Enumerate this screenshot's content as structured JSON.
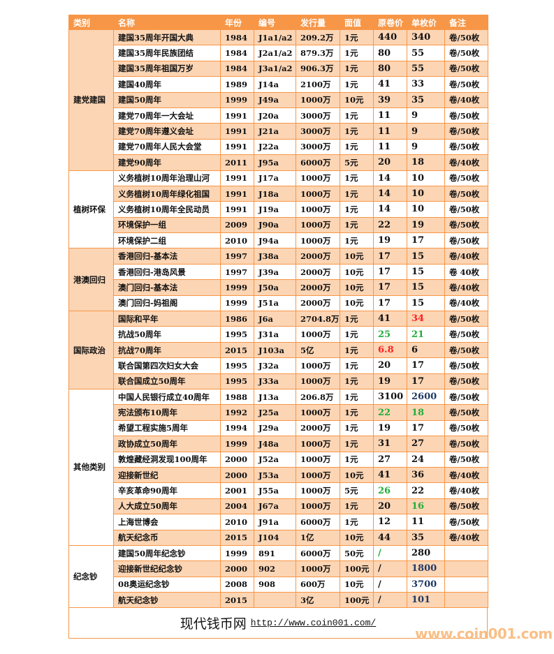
{
  "headers": [
    "类别",
    "名称",
    "年份",
    "编号",
    "发行量",
    "面值",
    "原卷价",
    "单枚价",
    "备注"
  ],
  "groups": [
    {
      "category": "建党建国",
      "shaded": true,
      "rows": [
        {
          "name": "建国35周年开国大典",
          "year": "1984",
          "code": "J1a1/a2",
          "issue": "209.2万",
          "face": "1元",
          "roll": "440",
          "unit": "340",
          "note": "卷/50枚",
          "shaded": true
        },
        {
          "name": "建国35周年民族团结",
          "year": "1984",
          "code": "J2a1/a2",
          "issue": "879.3万",
          "face": "1元",
          "roll": "80",
          "unit": "55",
          "note": "卷/50枚",
          "shaded": false
        },
        {
          "name": "建国35周年祖国万岁",
          "year": "1984",
          "code": "J3a1/a2",
          "issue": "906.3万",
          "face": "1元",
          "roll": "80",
          "unit": "55",
          "note": "卷/50枚",
          "shaded": true
        },
        {
          "name": "建国40周年",
          "year": "1989",
          "code": "J14a",
          "issue": "2100万",
          "face": "1元",
          "roll": "41",
          "unit": "33",
          "note": "卷/50枚",
          "shaded": false
        },
        {
          "name": "建国50周年",
          "year": "1999",
          "code": "J49a",
          "issue": "1000万",
          "face": "10元",
          "roll": "39",
          "unit": "35",
          "note": "卷/40枚",
          "shaded": true
        },
        {
          "name": "建党70周年一大会址",
          "year": "1991",
          "code": "J20a",
          "issue": "3000万",
          "face": "1元",
          "roll": "11",
          "unit": "9",
          "note": "卷/50枚",
          "shaded": false
        },
        {
          "name": "建党70周年遵义会址",
          "year": "1991",
          "code": "J21a",
          "issue": "3000万",
          "face": "1元",
          "roll": "11",
          "unit": "9",
          "note": "卷/50枚",
          "shaded": true
        },
        {
          "name": "建党70周年人民大会堂",
          "year": "1991",
          "code": "J22a",
          "issue": "3000万",
          "face": "1元",
          "roll": "11",
          "unit": "9",
          "note": "卷/50枚",
          "shaded": false
        },
        {
          "name": "建党90周年",
          "year": "2011",
          "code": "J95a",
          "issue": "6000万",
          "face": "5元",
          "roll": "20",
          "unit": "18",
          "note": "卷/40枚",
          "shaded": true
        }
      ]
    },
    {
      "category": "植树环保",
      "shaded": false,
      "rows": [
        {
          "name": "义务植树10周年治理山河",
          "year": "1991",
          "code": "J17a",
          "issue": "1000万",
          "face": "1元",
          "roll": "14",
          "unit": "10",
          "note": "卷/50枚",
          "shaded": false
        },
        {
          "name": "义务植树10周年绿化祖国",
          "year": "1991",
          "code": "J18a",
          "issue": "1000万",
          "face": "1元",
          "roll": "14",
          "unit": "10",
          "note": "卷/50枚",
          "shaded": true
        },
        {
          "name": "义务植树10周年全民动员",
          "year": "1991",
          "code": "J19a",
          "issue": "1000万",
          "face": "1元",
          "roll": "14",
          "unit": "10",
          "note": "卷/50枚",
          "shaded": false
        },
        {
          "name": "环境保护一组",
          "year": "2009",
          "code": "J90a",
          "issue": "1000万",
          "face": "1元",
          "roll": "22",
          "unit": "19",
          "note": "卷/50枚",
          "shaded": true
        },
        {
          "name": "环境保护二组",
          "year": "2010",
          "code": "J94a",
          "issue": "1000万",
          "face": "1元",
          "roll": "19",
          "unit": "17",
          "note": "卷/50枚",
          "shaded": false
        }
      ]
    },
    {
      "category": "港澳回归",
      "shaded": true,
      "rows": [
        {
          "name": "香港回归-基本法",
          "year": "1997",
          "code": "J38a",
          "issue": "2000万",
          "face": "10元",
          "roll": "17",
          "unit": "15",
          "note": "卷/40枚",
          "shaded": true
        },
        {
          "name": "香港回归-港岛风景",
          "year": "1997",
          "code": "J39a",
          "issue": "2000万",
          "face": "10元",
          "roll": "17",
          "unit": "15",
          "note": "卷 40枚",
          "shaded": false
        },
        {
          "name": "澳门回归-基本法",
          "year": "1999",
          "code": "J50a",
          "issue": "2000万",
          "face": "10元",
          "roll": "17",
          "unit": "15",
          "note": "卷/40枚",
          "shaded": true
        },
        {
          "name": "澳门回归-妈祖阁",
          "year": "1999",
          "code": "J51a",
          "issue": "2000万",
          "face": "10元",
          "roll": "17",
          "unit": "15",
          "note": "卷/40枚",
          "shaded": false
        }
      ]
    },
    {
      "category": "国际政治",
      "shaded": true,
      "rows": [
        {
          "name": "国际和平年",
          "year": "1986",
          "code": "J6a",
          "issue": "2704.8万",
          "face": "1元",
          "roll": "41",
          "unit": "34",
          "note": "卷/50枚",
          "shaded": true,
          "unit_color": "red"
        },
        {
          "name": "抗战50周年",
          "year": "1995",
          "code": "J31a",
          "issue": "1000万",
          "face": "1元",
          "roll": "25",
          "unit": "21",
          "note": "卷/50枚",
          "shaded": false,
          "roll_color": "green",
          "unit_color": "green"
        },
        {
          "name": "抗战70周年",
          "year": "2015",
          "code": "J103a",
          "issue": "5亿",
          "face": "1元",
          "roll": "6.8",
          "unit": "6",
          "note": "卷/50枚",
          "shaded": true,
          "roll_color": "red"
        },
        {
          "name": "联合国第四次妇女大会",
          "year": "1995",
          "code": "J32a",
          "issue": "1000万",
          "face": "1元",
          "roll": "20",
          "unit": "17",
          "note": "卷/50枚",
          "shaded": false
        },
        {
          "name": "联合国成立50周年",
          "year": "1995",
          "code": "J33a",
          "issue": "1000万",
          "face": "1元",
          "roll": "19",
          "unit": "17",
          "note": "卷/50枚",
          "shaded": true
        }
      ]
    },
    {
      "category": "其他类别",
      "shaded": false,
      "rows": [
        {
          "name": "中国人民银行成立40周年",
          "year": "1988",
          "code": "J13a",
          "issue": "206.8万",
          "face": "1元",
          "roll": "3100",
          "unit": "2600",
          "note": "卷/50枚",
          "shaded": false,
          "unit_color": "navy"
        },
        {
          "name": "宪法颁布10周年",
          "year": "1992",
          "code": "J25a",
          "issue": "1000万",
          "face": "1元",
          "roll": "22",
          "unit": "18",
          "note": "卷/50枚",
          "shaded": true,
          "roll_color": "green",
          "unit_color": "green"
        },
        {
          "name": "希望工程实施5周年",
          "year": "1994",
          "code": "J29a",
          "issue": "2000万",
          "face": "1元",
          "roll": "19",
          "unit": "17",
          "note": "卷/50枚",
          "shaded": false
        },
        {
          "name": "政协成立50周年",
          "year": "1999",
          "code": "J48a",
          "issue": "1000万",
          "face": "1元",
          "roll": "31",
          "unit": "27",
          "note": "卷/50枚",
          "shaded": true
        },
        {
          "name": "敦煌藏经洞发现100周年",
          "year": "2000",
          "code": "J52a",
          "issue": "1000万",
          "face": "1元",
          "roll": "27",
          "unit": "24",
          "note": "卷/50枚",
          "shaded": false
        },
        {
          "name": "迎接新世纪",
          "year": "2000",
          "code": "J53a",
          "issue": "1000万",
          "face": "10元",
          "roll": "41",
          "unit": "36",
          "note": "卷/40枚",
          "shaded": true
        },
        {
          "name": "辛亥革命90周年",
          "year": "2001",
          "code": "J55a",
          "issue": "1000万",
          "face": "5元",
          "roll": "26",
          "unit": "22",
          "note": "卷/40枚",
          "shaded": false,
          "roll_color": "green"
        },
        {
          "name": "人大成立50周年",
          "year": "2004",
          "code": "J67a",
          "issue": "1000万",
          "face": "1元",
          "roll": "20",
          "unit": "16",
          "note": "卷/50枚",
          "shaded": true,
          "unit_color": "green"
        },
        {
          "name": "上海世博会",
          "year": "2010",
          "code": "J91a",
          "issue": "6000万",
          "face": "1元",
          "roll": "12",
          "unit": "11",
          "note": "卷/50枚",
          "shaded": false
        },
        {
          "name": "航天纪念币",
          "year": "2015",
          "code": "J104",
          "issue": "1亿",
          "face": "10元",
          "roll": "44",
          "unit": "35",
          "note": "卷/40枚",
          "shaded": true
        }
      ]
    },
    {
      "category": "纪念钞",
      "shaded": false,
      "rows": [
        {
          "name": "建国50周年纪念钞",
          "year": "1999",
          "code": "891",
          "issue": "6000万",
          "face": "50元",
          "roll": "/",
          "unit": "280",
          "note": "",
          "shaded": false,
          "roll_color": "green"
        },
        {
          "name": "迎接新世纪纪念钞",
          "year": "2000",
          "code": "902",
          "issue": "1000万",
          "face": "100元",
          "roll": "/",
          "unit": "1800",
          "note": "",
          "shaded": true,
          "unit_color": "navy"
        },
        {
          "name": "08奥运纪念钞",
          "year": "2008",
          "code": "908",
          "issue": "600万",
          "face": "10元",
          "roll": "/",
          "unit": "3700",
          "note": "",
          "shaded": false,
          "unit_color": "navy"
        },
        {
          "name": "航天纪念钞",
          "year": "2015",
          "code": "",
          "issue": "3亿",
          "face": "100元",
          "roll": "/",
          "unit": "101",
          "note": "",
          "shaded": true,
          "unit_color": "navy"
        }
      ]
    }
  ],
  "footer": {
    "site_name": "现代钱币网",
    "url": "http://www.coin001.com/"
  },
  "watermark": "www.coin001.com",
  "colors": {
    "header": "#f79646",
    "shade": "#fcd5b4",
    "border": "#f79646",
    "red": "#ff2020",
    "green": "#1fae3a"
  }
}
